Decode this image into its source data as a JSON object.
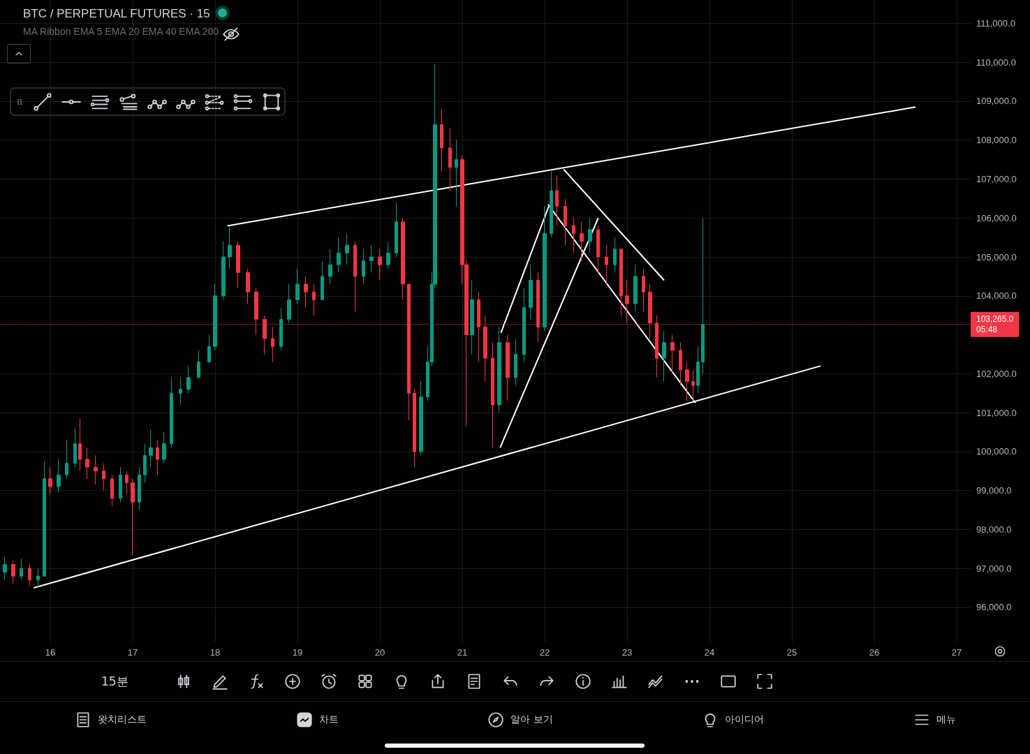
{
  "chart_data": {
    "type": "candlestick",
    "title": "BTC / PERPETUAL FUTURES · 15",
    "subtitle": "MA Ribbon EMA 5 EMA 20 EMA 40 EMA 200",
    "x": [
      15.45,
      15.55,
      15.65,
      15.75,
      15.85,
      15.93,
      16.0,
      16.1,
      16.2,
      16.3,
      16.36,
      16.45,
      16.55,
      16.65,
      16.75,
      16.85,
      16.93,
      17.0,
      17.08,
      17.15,
      17.22,
      17.3,
      17.38,
      17.47,
      17.58,
      17.68,
      17.8,
      17.93,
      18.0,
      18.1,
      18.18,
      18.28,
      18.4,
      18.5,
      18.6,
      18.7,
      18.8,
      18.9,
      19.0,
      19.1,
      19.2,
      19.3,
      19.4,
      19.5,
      19.6,
      19.7,
      19.8,
      19.9,
      20.0,
      20.1,
      20.2,
      20.28,
      20.35,
      20.42,
      20.5,
      20.58,
      20.63,
      20.67,
      20.75,
      20.85,
      20.93,
      21.0,
      21.05,
      21.12,
      21.2,
      21.28,
      21.37,
      21.45,
      21.55,
      21.65,
      21.75,
      21.83,
      21.92,
      22.0,
      22.08,
      22.15,
      22.25,
      22.35,
      22.45,
      22.55,
      22.65,
      22.75,
      22.85,
      22.93,
      23.0,
      23.1,
      23.2,
      23.28,
      23.36,
      23.45,
      23.55,
      23.65,
      23.73,
      23.8,
      23.86,
      23.92
    ],
    "ohlc": [
      [
        96900,
        97300,
        96700,
        97100
      ],
      [
        97100,
        97200,
        96600,
        96800
      ],
      [
        96800,
        97250,
        96700,
        97000
      ],
      [
        97000,
        97100,
        96550,
        96700
      ],
      [
        96700,
        97000,
        96500,
        96800
      ],
      [
        96800,
        99750,
        96800,
        99300
      ],
      [
        99300,
        99600,
        98900,
        99100
      ],
      [
        99100,
        99800,
        98950,
        99400
      ],
      [
        99400,
        100300,
        99300,
        99700
      ],
      [
        99700,
        100600,
        99600,
        100200
      ],
      [
        100200,
        100850,
        99500,
        99800
      ],
      [
        99800,
        100100,
        99300,
        99600
      ],
      [
        99600,
        99900,
        99150,
        99500
      ],
      [
        99500,
        99700,
        99000,
        99300
      ],
      [
        99300,
        99400,
        98600,
        98800
      ],
      [
        98800,
        99600,
        98700,
        99400
      ],
      [
        99400,
        99500,
        98900,
        99200
      ],
      [
        99200,
        99300,
        97350,
        98700
      ],
      [
        98700,
        99600,
        98500,
        99400
      ],
      [
        99400,
        100200,
        99200,
        99900
      ],
      [
        99900,
        100550,
        99600,
        100100
      ],
      [
        100100,
        100300,
        99400,
        99800
      ],
      [
        99800,
        100500,
        99700,
        100200
      ],
      [
        100200,
        101900,
        100100,
        101500
      ],
      [
        101500,
        101900,
        101200,
        101600
      ],
      [
        101600,
        102200,
        101500,
        101900
      ],
      [
        101900,
        102600,
        101900,
        102300
      ],
      [
        102300,
        103000,
        102300,
        102700
      ],
      [
        102700,
        104300,
        102600,
        104000
      ],
      [
        104000,
        105400,
        103900,
        105000
      ],
      [
        105000,
        105800,
        104700,
        105300
      ],
      [
        105300,
        105400,
        104200,
        104600
      ],
      [
        104600,
        104700,
        103800,
        104100
      ],
      [
        104100,
        104200,
        103000,
        103400
      ],
      [
        103400,
        103500,
        102500,
        102900
      ],
      [
        102900,
        103200,
        102300,
        102700
      ],
      [
        102700,
        103700,
        102600,
        103400
      ],
      [
        103400,
        104300,
        103300,
        103900
      ],
      [
        103900,
        104700,
        103800,
        104300
      ],
      [
        104300,
        104500,
        103700,
        104100
      ],
      [
        104100,
        104300,
        103500,
        103900
      ],
      [
        103900,
        104900,
        103900,
        104500
      ],
      [
        104500,
        105200,
        104300,
        104800
      ],
      [
        104800,
        105500,
        104600,
        105100
      ],
      [
        105100,
        105600,
        104800,
        105300
      ],
      [
        105300,
        105400,
        103600,
        104500
      ],
      [
        104500,
        105200,
        104300,
        104900
      ],
      [
        104900,
        105300,
        104600,
        105000
      ],
      [
        105000,
        105200,
        104400,
        104800
      ],
      [
        104800,
        105400,
        104700,
        105100
      ],
      [
        105100,
        106400,
        105000,
        105900
      ],
      [
        105900,
        106000,
        103900,
        104300
      ],
      [
        104300,
        104300,
        100800,
        101500
      ],
      [
        101500,
        101600,
        99600,
        100000
      ],
      [
        100000,
        101800,
        99900,
        101400
      ],
      [
        101400,
        102700,
        101300,
        102300
      ],
      [
        102300,
        104600,
        102200,
        104300
      ],
      [
        104300,
        109950,
        104200,
        108400
      ],
      [
        108400,
        108800,
        107200,
        107800
      ],
      [
        107800,
        108300,
        106700,
        107300
      ],
      [
        107300,
        108000,
        106300,
        107500
      ],
      [
        107500,
        107600,
        104300,
        104800
      ],
      [
        104800,
        104900,
        100650,
        103000
      ],
      [
        103000,
        104400,
        102500,
        103900
      ],
      [
        103900,
        104100,
        102300,
        103200
      ],
      [
        103200,
        103500,
        101800,
        102400
      ],
      [
        102400,
        102800,
        100100,
        101200
      ],
      [
        101200,
        103200,
        101000,
        102800
      ],
      [
        102800,
        103000,
        101300,
        101900
      ],
      [
        101900,
        102900,
        101700,
        102500
      ],
      [
        102500,
        104200,
        102300,
        103700
      ],
      [
        103700,
        104800,
        103400,
        104400
      ],
      [
        104400,
        104600,
        102800,
        103200
      ],
      [
        103200,
        106300,
        103100,
        105600
      ],
      [
        105600,
        107200,
        105500,
        106700
      ],
      [
        106700,
        107100,
        105800,
        106300
      ],
      [
        106300,
        106500,
        105300,
        105800
      ],
      [
        105800,
        106000,
        105100,
        105600
      ],
      [
        105600,
        105900,
        104900,
        105400
      ],
      [
        105400,
        106000,
        105100,
        105700
      ],
      [
        105700,
        105800,
        104600,
        105000
      ],
      [
        105000,
        105300,
        104300,
        104800
      ],
      [
        104800,
        105500,
        104600,
        105200
      ],
      [
        105200,
        105200,
        103500,
        104000
      ],
      [
        104000,
        104400,
        103300,
        103800
      ],
      [
        103800,
        104800,
        103600,
        104500
      ],
      [
        104500,
        104700,
        103600,
        104100
      ],
      [
        104100,
        104300,
        102900,
        103300
      ],
      [
        103300,
        103500,
        101900,
        102400
      ],
      [
        102400,
        103100,
        101800,
        102800
      ],
      [
        102800,
        103000,
        102000,
        102600
      ],
      [
        102600,
        102800,
        101700,
        102100
      ],
      [
        102100,
        102300,
        101300,
        101800
      ],
      [
        101800,
        102100,
        101300,
        101700
      ],
      [
        101700,
        102700,
        101500,
        102300
      ],
      [
        102300,
        105990,
        102000,
        103265
      ]
    ],
    "series": [
      {
        "type": "line",
        "color": "#ffffff",
        "x": [
          18.15,
          26.5
        ],
        "values": [
          105800,
          108850
        ]
      },
      {
        "type": "line",
        "color": "#ffffff",
        "x": [
          15.8,
          25.35
        ],
        "values": [
          96500,
          102200
        ]
      },
      {
        "type": "line",
        "color": "#ffffff",
        "x": [
          21.47,
          22.05
        ],
        "values": [
          103050,
          106300
        ]
      },
      {
        "type": "line",
        "color": "#ffffff",
        "x": [
          21.46,
          22.65
        ],
        "values": [
          100100,
          106000
        ]
      },
      {
        "type": "line",
        "color": "#ffffff",
        "x": [
          22.04,
          23.83
        ],
        "values": [
          106350,
          101250
        ]
      },
      {
        "type": "line",
        "color": "#ffffff",
        "x": [
          22.23,
          23.45
        ],
        "values": [
          107250,
          104400
        ]
      }
    ],
    "xlim": [
      15.39,
      27.17
    ],
    "xticks": [
      16,
      17,
      18,
      19,
      20,
      21,
      22,
      23,
      24,
      25,
      26,
      27
    ],
    "ylim": [
      95100,
      111600
    ],
    "yticks": [
      {
        "value": 96000,
        "label": "96,000.0"
      },
      {
        "value": 97000,
        "label": "97,000.0"
      },
      {
        "value": 98000,
        "label": "98,000.0"
      },
      {
        "value": 99000,
        "label": "99,000.0"
      },
      {
        "value": 100000,
        "label": "100,000.0"
      },
      {
        "value": 101000,
        "label": "101,000.0"
      },
      {
        "value": 102000,
        "label": "102,000.0"
      },
      {
        "value": 104000,
        "label": "104,000.0"
      },
      {
        "value": 105000,
        "label": "105,000.0"
      },
      {
        "value": 106000,
        "label": "106,000.0"
      },
      {
        "value": 107000,
        "label": "107,000.0"
      },
      {
        "value": 108000,
        "label": "108,000.0"
      },
      {
        "value": 109000,
        "label": "109,000.0"
      },
      {
        "value": 110000,
        "label": "110,000.0"
      },
      {
        "value": 111000,
        "label": "111,000.0"
      }
    ],
    "grid": true,
    "ref_lines": [
      {
        "axis": "y",
        "value": 103265,
        "label": "103,265.0\n05:48",
        "color": "#f23645",
        "line_style": "dotted"
      }
    ],
    "annotations": [
      "15분",
      "왓치리스트",
      "차트",
      "알아 보기",
      "아이디어",
      "메뉴"
    ]
  }
}
